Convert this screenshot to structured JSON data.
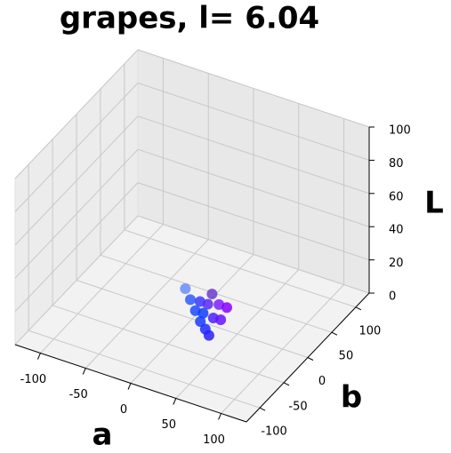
{
  "chart_data": {
    "type": "scatter3d",
    "title": "grapes, l= 6.04",
    "xlabel": "a",
    "ylabel": "b",
    "zlabel": "L",
    "xlim": [
      -128,
      128
    ],
    "ylim": [
      -128,
      128
    ],
    "zlim": [
      0,
      100
    ],
    "xticks": [
      -100,
      -50,
      0,
      50,
      100
    ],
    "yticks": [
      -100,
      -50,
      0,
      50,
      100
    ],
    "zticks": [
      0,
      20,
      40,
      60,
      80,
      100
    ],
    "grid": true,
    "x": [
      10,
      15,
      20,
      25,
      30,
      34,
      22,
      28,
      30,
      35,
      40,
      33,
      38,
      26
    ],
    "y": [
      -33,
      -32,
      -31,
      -30,
      -29,
      -29,
      -25,
      -20,
      -15,
      -10,
      -3,
      -18,
      -12,
      -26
    ],
    "z": [
      30,
      24,
      18,
      12,
      8,
      5,
      22,
      20,
      25,
      18,
      15,
      12,
      10,
      16
    ],
    "colors": [
      "#6a8cff",
      "#2f5bff",
      "#1f4bff",
      "#1a3cff",
      "#1d2bff",
      "#2b1fff",
      "#3a3aff",
      "#5a2cf0",
      "#6d3ccf",
      "#7e1fff",
      "#8a00ff",
      "#4b20ff",
      "#6a10ff",
      "#0f3fff"
    ]
  }
}
